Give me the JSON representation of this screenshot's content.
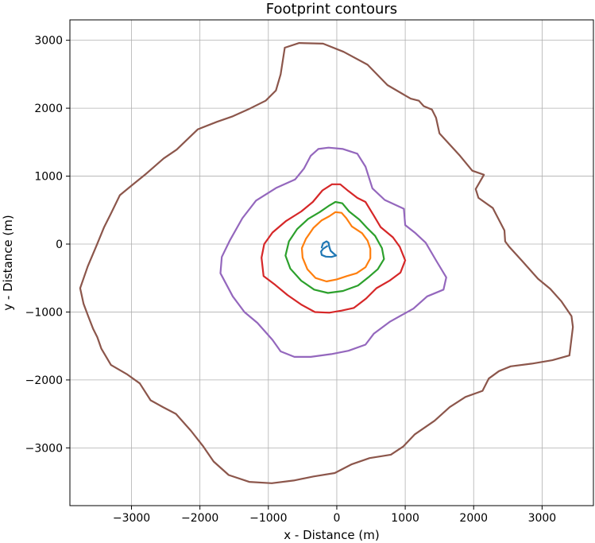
{
  "chart_data": {
    "type": "line",
    "title": "Footprint contours",
    "xlabel": "x - Distance (m)",
    "ylabel": "y - Distance (m)",
    "xlim": [
      -3900,
      3750
    ],
    "ylim": [
      -3850,
      3300
    ],
    "xticks": [
      -3000,
      -2000,
      -1000,
      0,
      1000,
      2000,
      3000
    ],
    "yticks": [
      -3000,
      -2000,
      -1000,
      0,
      1000,
      2000,
      3000
    ],
    "xtick_labels": [
      "−3000",
      "−2000",
      "−1000",
      "0",
      "1000",
      "2000",
      "3000"
    ],
    "ytick_labels": [
      "−3000",
      "−2000",
      "−1000",
      "0",
      "1000",
      "2000",
      "3000"
    ],
    "grid": true,
    "series": [
      {
        "color": "#1f77b4",
        "points": [
          [
            -140,
            -30
          ],
          [
            -200,
            -70
          ],
          [
            -230,
            -110
          ],
          [
            -220,
            -160
          ],
          [
            -160,
            -185
          ],
          [
            -80,
            -190
          ],
          [
            -10,
            -170
          ],
          [
            -45,
            -140
          ],
          [
            -90,
            -100
          ],
          [
            -110,
            -40
          ],
          [
            -120,
            20
          ],
          [
            -150,
            40
          ],
          [
            -200,
            10
          ],
          [
            -220,
            -50
          ]
        ]
      },
      {
        "color": "#ff7f0e",
        "points": [
          [
            -20,
            470
          ],
          [
            70,
            460
          ],
          [
            140,
            380
          ],
          [
            220,
            260
          ],
          [
            370,
            160
          ],
          [
            450,
            50
          ],
          [
            490,
            -70
          ],
          [
            490,
            -210
          ],
          [
            420,
            -340
          ],
          [
            290,
            -430
          ],
          [
            150,
            -470
          ],
          [
            0,
            -520
          ],
          [
            -150,
            -550
          ],
          [
            -310,
            -500
          ],
          [
            -430,
            -370
          ],
          [
            -500,
            -200
          ],
          [
            -510,
            -60
          ],
          [
            -450,
            80
          ],
          [
            -340,
            240
          ],
          [
            -220,
            350
          ],
          [
            -110,
            410
          ],
          [
            -20,
            470
          ]
        ]
      },
      {
        "color": "#2ca02c",
        "points": [
          [
            -20,
            620
          ],
          [
            80,
            600
          ],
          [
            180,
            480
          ],
          [
            330,
            360
          ],
          [
            440,
            240
          ],
          [
            560,
            120
          ],
          [
            660,
            -60
          ],
          [
            690,
            -220
          ],
          [
            600,
            -370
          ],
          [
            460,
            -490
          ],
          [
            310,
            -610
          ],
          [
            90,
            -690
          ],
          [
            -130,
            -720
          ],
          [
            -330,
            -670
          ],
          [
            -520,
            -540
          ],
          [
            -680,
            -360
          ],
          [
            -750,
            -170
          ],
          [
            -700,
            40
          ],
          [
            -580,
            220
          ],
          [
            -420,
            370
          ],
          [
            -250,
            470
          ],
          [
            -120,
            560
          ],
          [
            -20,
            620
          ]
        ]
      },
      {
        "color": "#d62728",
        "points": [
          [
            -70,
            880
          ],
          [
            50,
            880
          ],
          [
            170,
            780
          ],
          [
            300,
            680
          ],
          [
            420,
            620
          ],
          [
            540,
            420
          ],
          [
            640,
            250
          ],
          [
            820,
            100
          ],
          [
            920,
            -40
          ],
          [
            1000,
            -240
          ],
          [
            930,
            -420
          ],
          [
            770,
            -540
          ],
          [
            580,
            -650
          ],
          [
            430,
            -800
          ],
          [
            250,
            -940
          ],
          [
            70,
            -980
          ],
          [
            -110,
            -1010
          ],
          [
            -320,
            -1000
          ],
          [
            -520,
            -890
          ],
          [
            -720,
            -750
          ],
          [
            -900,
            -600
          ],
          [
            -1070,
            -470
          ],
          [
            -1100,
            -200
          ],
          [
            -1060,
            0
          ],
          [
            -940,
            170
          ],
          [
            -740,
            340
          ],
          [
            -520,
            480
          ],
          [
            -350,
            620
          ],
          [
            -210,
            790
          ],
          [
            -70,
            880
          ]
        ]
      },
      {
        "color": "#9467bd",
        "points": [
          [
            -270,
            1400
          ],
          [
            -120,
            1420
          ],
          [
            90,
            1400
          ],
          [
            300,
            1330
          ],
          [
            420,
            1140
          ],
          [
            520,
            820
          ],
          [
            700,
            650
          ],
          [
            980,
            520
          ],
          [
            1000,
            280
          ],
          [
            1150,
            160
          ],
          [
            1300,
            20
          ],
          [
            1450,
            -240
          ],
          [
            1600,
            -490
          ],
          [
            1560,
            -670
          ],
          [
            1320,
            -770
          ],
          [
            1120,
            -950
          ],
          [
            780,
            -1140
          ],
          [
            540,
            -1320
          ],
          [
            420,
            -1480
          ],
          [
            170,
            -1570
          ],
          [
            -80,
            -1620
          ],
          [
            -380,
            -1660
          ],
          [
            -620,
            -1660
          ],
          [
            -820,
            -1580
          ],
          [
            -940,
            -1410
          ],
          [
            -1160,
            -1160
          ],
          [
            -1350,
            -1000
          ],
          [
            -1520,
            -770
          ],
          [
            -1700,
            -430
          ],
          [
            -1680,
            -190
          ],
          [
            -1560,
            60
          ],
          [
            -1380,
            380
          ],
          [
            -1180,
            640
          ],
          [
            -880,
            830
          ],
          [
            -610,
            950
          ],
          [
            -480,
            1110
          ],
          [
            -380,
            1300
          ],
          [
            -270,
            1400
          ]
        ]
      },
      {
        "color": "#8c564b",
        "points": [
          [
            -760,
            2890
          ],
          [
            -550,
            2960
          ],
          [
            -200,
            2950
          ],
          [
            100,
            2830
          ],
          [
            450,
            2640
          ],
          [
            740,
            2340
          ],
          [
            1080,
            2140
          ],
          [
            1200,
            2110
          ],
          [
            1270,
            2030
          ],
          [
            1390,
            1980
          ],
          [
            1450,
            1860
          ],
          [
            1500,
            1630
          ],
          [
            1800,
            1300
          ],
          [
            1980,
            1080
          ],
          [
            2150,
            1020
          ],
          [
            2030,
            810
          ],
          [
            2070,
            680
          ],
          [
            2280,
            530
          ],
          [
            2450,
            200
          ],
          [
            2460,
            40
          ],
          [
            2520,
            -40
          ],
          [
            2710,
            -250
          ],
          [
            2940,
            -510
          ],
          [
            3120,
            -660
          ],
          [
            3280,
            -840
          ],
          [
            3430,
            -1060
          ],
          [
            3450,
            -1220
          ],
          [
            3400,
            -1640
          ],
          [
            3150,
            -1710
          ],
          [
            2850,
            -1760
          ],
          [
            2540,
            -1800
          ],
          [
            2370,
            -1870
          ],
          [
            2220,
            -1980
          ],
          [
            2130,
            -2160
          ],
          [
            1880,
            -2250
          ],
          [
            1650,
            -2400
          ],
          [
            1430,
            -2600
          ],
          [
            1140,
            -2800
          ],
          [
            970,
            -2980
          ],
          [
            790,
            -3100
          ],
          [
            480,
            -3150
          ],
          [
            220,
            -3240
          ],
          [
            -30,
            -3370
          ],
          [
            -340,
            -3420
          ],
          [
            -630,
            -3480
          ],
          [
            -950,
            -3520
          ],
          [
            -1280,
            -3500
          ],
          [
            -1580,
            -3400
          ],
          [
            -1800,
            -3200
          ],
          [
            -1950,
            -2980
          ],
          [
            -2130,
            -2750
          ],
          [
            -2350,
            -2500
          ],
          [
            -2540,
            -2400
          ],
          [
            -2720,
            -2300
          ],
          [
            -2880,
            -2050
          ],
          [
            -3060,
            -1920
          ],
          [
            -3300,
            -1780
          ],
          [
            -3440,
            -1540
          ],
          [
            -3500,
            -1370
          ],
          [
            -3560,
            -1250
          ],
          [
            -3630,
            -1070
          ],
          [
            -3700,
            -880
          ],
          [
            -3750,
            -650
          ],
          [
            -3640,
            -330
          ],
          [
            -3510,
            -20
          ],
          [
            -3400,
            250
          ],
          [
            -3300,
            450
          ],
          [
            -3170,
            720
          ],
          [
            -3000,
            860
          ],
          [
            -2780,
            1040
          ],
          [
            -2530,
            1260
          ],
          [
            -2340,
            1390
          ],
          [
            -2030,
            1690
          ],
          [
            -1750,
            1800
          ],
          [
            -1520,
            1880
          ],
          [
            -1300,
            1980
          ],
          [
            -1040,
            2110
          ],
          [
            -890,
            2260
          ],
          [
            -820,
            2500
          ],
          [
            -760,
            2890
          ]
        ]
      }
    ]
  }
}
